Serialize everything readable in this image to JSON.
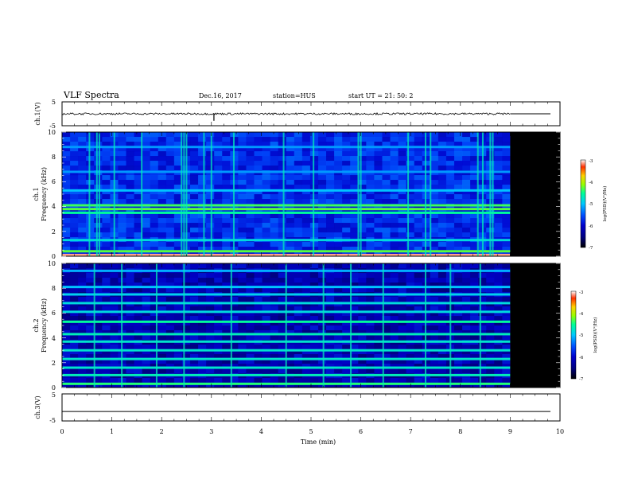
{
  "header": {
    "title": "VLF Spectra",
    "date": "Dec.16, 2017",
    "station": "station=HUS",
    "start": "start  UT  =   21: 50: 2"
  },
  "colors": {
    "background": "#ffffff",
    "no_data": "#000000",
    "colormap": [
      "#000000",
      "#000080",
      "#0000cc",
      "#0050ff",
      "#00c8ff",
      "#00ff96",
      "#96ff00",
      "#ffd000",
      "#ff3000",
      "#ffffff"
    ]
  },
  "chart_data": [
    {
      "id": "ch1-waveform",
      "type": "line",
      "ylabel": "ch.1(V)",
      "yticklabels": [
        "5",
        "-5"
      ],
      "ylim": [
        -5,
        5
      ],
      "xlim": [
        0,
        10
      ],
      "data_end_min": 9.0,
      "mean_v": 0.0,
      "noise_amplitude_v": 0.4,
      "spikes": [
        {
          "t": 3.05,
          "v": -1.6
        }
      ]
    },
    {
      "id": "ch1-spectrogram",
      "type": "heatmap",
      "ylabel_channel": "ch.1",
      "ylabel": "Frequency (kHz)",
      "ylim": [
        0,
        10
      ],
      "xlim": [
        0,
        10
      ],
      "yticklabels": [
        "10",
        "8",
        "6",
        "4",
        "2",
        "0"
      ],
      "data_end_min": 9.0,
      "background_level": 0.28,
      "bands": [
        {
          "f": 0.1,
          "level": 0.95
        },
        {
          "f": 0.4,
          "level": 0.62
        },
        {
          "f": 1.3,
          "level": 0.48
        },
        {
          "f": 3.5,
          "level": 0.55
        },
        {
          "f": 3.8,
          "level": 0.62
        },
        {
          "f": 4.1,
          "level": 0.6
        },
        {
          "f": 5.3,
          "level": 0.44
        },
        {
          "f": 6.8,
          "level": 0.4
        },
        {
          "f": 8.8,
          "level": 0.4
        }
      ],
      "sferic_columns_min": [
        0.55,
        0.7,
        0.75,
        1.05,
        1.6,
        2.4,
        2.45,
        2.5,
        2.85,
        3.0,
        3.45,
        4.45,
        5.05,
        5.95,
        6.0,
        6.95,
        7.3,
        7.4,
        8.35,
        8.45,
        8.6,
        8.65
      ]
    },
    {
      "id": "ch2-spectrogram",
      "type": "heatmap",
      "ylabel_channel": "ch.2",
      "ylabel": "Frequency (kHz)",
      "ylim": [
        0,
        10
      ],
      "xlim": [
        0,
        10
      ],
      "yticklabels": [
        "10",
        "8",
        "6",
        "4",
        "2",
        "0"
      ],
      "data_end_min": 9.0,
      "background_level": 0.18,
      "bands": [
        {
          "f": 0.3,
          "level": 0.58
        },
        {
          "f": 1.0,
          "level": 0.52
        },
        {
          "f": 1.6,
          "level": 0.5
        },
        {
          "f": 2.3,
          "level": 0.5
        },
        {
          "f": 3.0,
          "level": 0.5
        },
        {
          "f": 3.7,
          "level": 0.5
        },
        {
          "f": 4.3,
          "level": 0.52
        },
        {
          "f": 5.3,
          "level": 0.55
        },
        {
          "f": 6.1,
          "level": 0.48
        },
        {
          "f": 6.8,
          "level": 0.48
        },
        {
          "f": 7.5,
          "level": 0.46
        },
        {
          "f": 8.1,
          "level": 0.44
        },
        {
          "f": 9.4,
          "level": 0.42
        }
      ],
      "sferic_columns_min": [
        0.65,
        1.2,
        1.9,
        2.45,
        3.4,
        4.5,
        5.25,
        5.8,
        6.45,
        7.3,
        7.8,
        8.4
      ]
    },
    {
      "id": "ch3-waveform",
      "type": "line",
      "ylabel": "ch.3(V)",
      "yticklabels": [
        "5",
        "-5"
      ],
      "ylim": [
        -5,
        5
      ],
      "xlim": [
        0,
        10
      ],
      "mean_v": -1.5,
      "noise_amplitude_v": 0.0
    }
  ],
  "colorbars": [
    {
      "id": "cb1",
      "ticklabels": [
        "-3",
        "-4",
        "-5",
        "-6",
        "-7"
      ],
      "label": "log(PSD)(V²/Hz)"
    },
    {
      "id": "cb2",
      "ticklabels": [
        "-3",
        "-4",
        "-5",
        "-6",
        "-7"
      ],
      "label": "log(PSD)(V²/Hz)"
    }
  ],
  "xaxis": {
    "ticklabels": [
      "0",
      "1",
      "2",
      "3",
      "4",
      "5",
      "6",
      "7",
      "8",
      "9",
      "10"
    ],
    "label": "Time (min)",
    "range": [
      0,
      10
    ]
  }
}
